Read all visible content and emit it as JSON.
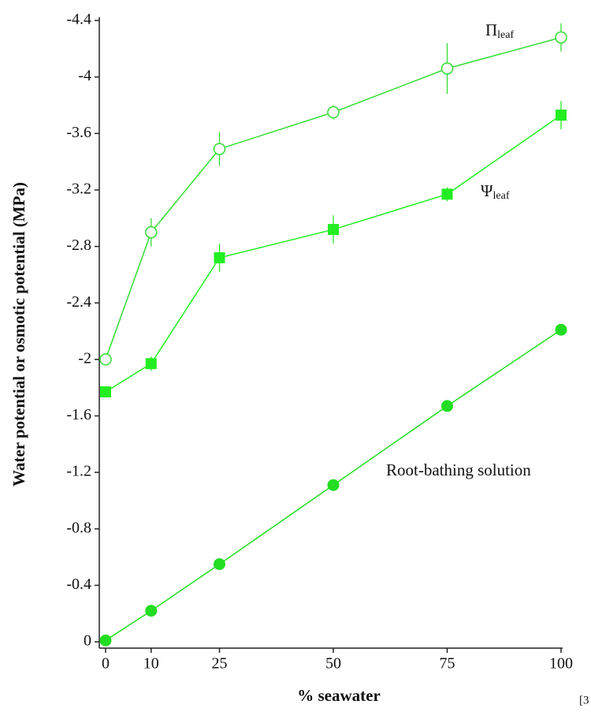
{
  "chart_data": {
    "type": "line",
    "x_label": "% seawater",
    "y_label": "Water potential or osmotic potential (MPa)",
    "x": [
      0,
      10,
      25,
      50,
      75,
      100
    ],
    "xlim": [
      0,
      100
    ],
    "xticks": [
      0,
      10,
      25,
      50,
      75,
      100
    ],
    "ylim": [
      0,
      -4.4
    ],
    "yticks": [
      0,
      -0.4,
      -0.8,
      -1.2,
      -1.6,
      -2.0,
      -2.4,
      -2.8,
      -3.2,
      -3.6,
      -4.0,
      -4.4
    ],
    "series": [
      {
        "name": "Π",
        "name_sub": "leaf",
        "marker": "open-circle",
        "color": "#33dd33",
        "values": [
          -2.0,
          -2.9,
          -3.49,
          -3.75,
          -4.06,
          -4.28
        ],
        "errors": [
          0.0,
          0.1,
          0.12,
          0.05,
          0.18,
          0.1
        ]
      },
      {
        "name": "Ψ",
        "name_sub": "leaf",
        "marker": "square",
        "color": "#22ee22",
        "values": [
          -1.77,
          -1.97,
          -2.72,
          -2.92,
          -3.17,
          -3.73
        ],
        "errors": [
          0.0,
          0.05,
          0.1,
          0.1,
          0.05,
          0.1
        ]
      },
      {
        "name": "Root-bathing solution",
        "marker": "circle",
        "color": "#22dd22",
        "values": [
          -0.01,
          -0.22,
          -0.55,
          -1.11,
          -1.67,
          -2.21
        ]
      }
    ],
    "footnote": "[3"
  }
}
